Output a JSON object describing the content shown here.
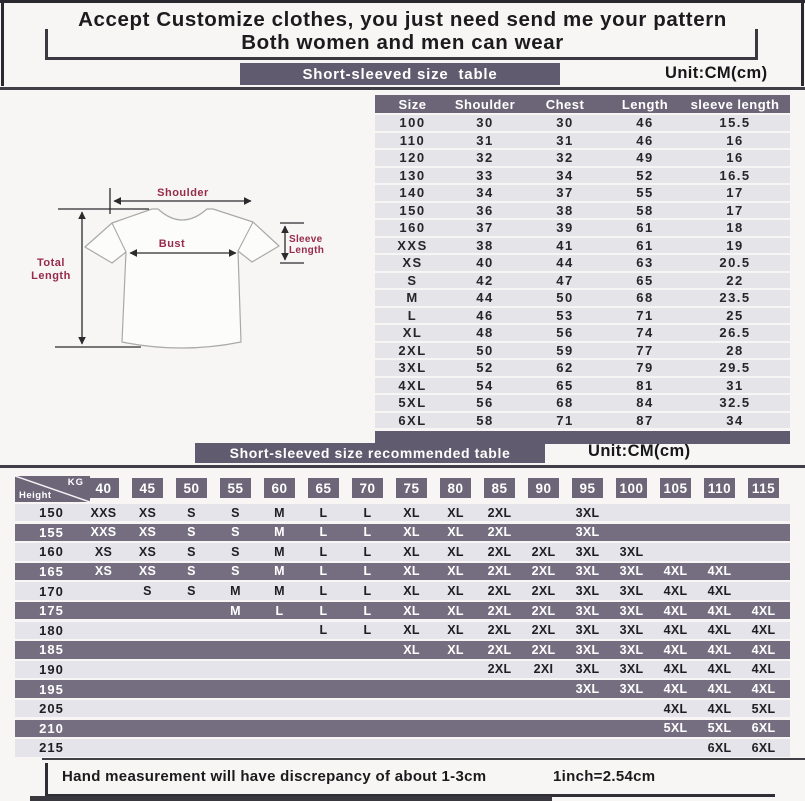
{
  "page": {
    "title_line1": "Accept Customize clothes, you just need send me your pattern",
    "title_line2": "Both women and men can wear"
  },
  "size_table_section": {
    "banner": "Short-sleeved size  table",
    "unit": "Unit:CM(cm)"
  },
  "size_table": {
    "columns": [
      "Size",
      "Shoulder",
      "Chest",
      "Length",
      "sleeve length"
    ],
    "rows": [
      [
        "100",
        "30",
        "30",
        "46",
        "15.5"
      ],
      [
        "110",
        "31",
        "31",
        "46",
        "16"
      ],
      [
        "120",
        "32",
        "32",
        "49",
        "16"
      ],
      [
        "130",
        "33",
        "34",
        "52",
        "16.5"
      ],
      [
        "140",
        "34",
        "37",
        "55",
        "17"
      ],
      [
        "150",
        "36",
        "38",
        "58",
        "17"
      ],
      [
        "160",
        "37",
        "39",
        "61",
        "18"
      ],
      [
        "XXS",
        "38",
        "41",
        "61",
        "19"
      ],
      [
        "XS",
        "40",
        "44",
        "63",
        "20.5"
      ],
      [
        "S",
        "42",
        "47",
        "65",
        "22"
      ],
      [
        "M",
        "44",
        "50",
        "68",
        "23.5"
      ],
      [
        "L",
        "46",
        "53",
        "71",
        "25"
      ],
      [
        "XL",
        "48",
        "56",
        "74",
        "26.5"
      ],
      [
        "2XL",
        "50",
        "59",
        "77",
        "28"
      ],
      [
        "3XL",
        "52",
        "62",
        "79",
        "29.5"
      ],
      [
        "4XL",
        "54",
        "65",
        "81",
        "31"
      ],
      [
        "5XL",
        "56",
        "68",
        "84",
        "32.5"
      ],
      [
        "6XL",
        "58",
        "71",
        "87",
        "34"
      ]
    ]
  },
  "diagram": {
    "shoulder_label": "Shoulder",
    "bust_label": "Bust",
    "total_length_line1": "Total",
    "total_length_line2": "Length",
    "sleeve_line1": "Sleeve",
    "sleeve_line2": "Length"
  },
  "reco_section": {
    "banner": "Short-sleeved size recommended table",
    "unit": "Unit:CM(cm)"
  },
  "reco_table": {
    "corner_top": "KG",
    "corner_bottom": "Height",
    "weights": [
      "40",
      "45",
      "50",
      "55",
      "60",
      "65",
      "70",
      "75",
      "80",
      "85",
      "90",
      "95",
      "100",
      "105",
      "110",
      "115"
    ],
    "rows": [
      {
        "height": "150",
        "cells": [
          "XXS",
          "XS",
          "S",
          "S",
          "M",
          "L",
          "L",
          "XL",
          "XL",
          "2XL",
          "",
          "3XL",
          "",
          "",
          "",
          ""
        ]
      },
      {
        "height": "155",
        "cells": [
          "XXS",
          "XS",
          "S",
          "S",
          "M",
          "L",
          "L",
          "XL",
          "XL",
          "2XL",
          "",
          "3XL",
          "",
          "",
          "",
          ""
        ]
      },
      {
        "height": "160",
        "cells": [
          "XS",
          "XS",
          "S",
          "S",
          "M",
          "L",
          "L",
          "XL",
          "XL",
          "2XL",
          "2XL",
          "3XL",
          "3XL",
          "",
          "",
          ""
        ]
      },
      {
        "height": "165",
        "cells": [
          "XS",
          "XS",
          "S",
          "S",
          "M",
          "L",
          "L",
          "XL",
          "XL",
          "2XL",
          "2XL",
          "3XL",
          "3XL",
          "4XL",
          "4XL",
          ""
        ]
      },
      {
        "height": "170",
        "cells": [
          "",
          "S",
          "S",
          "M",
          "M",
          "L",
          "L",
          "XL",
          "XL",
          "2XL",
          "2XL",
          "3XL",
          "3XL",
          "4XL",
          "4XL",
          ""
        ]
      },
      {
        "height": "175",
        "cells": [
          "",
          "",
          "",
          "M",
          "L",
          "L",
          "L",
          "XL",
          "XL",
          "2XL",
          "2XL",
          "3XL",
          "3XL",
          "4XL",
          "4XL",
          "4XL"
        ]
      },
      {
        "height": "180",
        "cells": [
          "",
          "",
          "",
          "",
          "",
          "L",
          "L",
          "XL",
          "XL",
          "2XL",
          "2XL",
          "3XL",
          "3XL",
          "4XL",
          "4XL",
          "4XL"
        ]
      },
      {
        "height": "185",
        "cells": [
          "",
          "",
          "",
          "",
          "",
          "",
          "",
          "XL",
          "XL",
          "2XL",
          "2XL",
          "3XL",
          "3XL",
          "4XL",
          "4XL",
          "4XL"
        ]
      },
      {
        "height": "190",
        "cells": [
          "",
          "",
          "",
          "",
          "",
          "",
          "",
          "",
          "",
          "2XL",
          "2XI",
          "3XL",
          "3XL",
          "4XL",
          "4XL",
          "4XL"
        ]
      },
      {
        "height": "195",
        "cells": [
          "",
          "",
          "",
          "",
          "",
          "",
          "",
          "",
          "",
          "",
          "",
          "3XL",
          "3XL",
          "4XL",
          "4XL",
          "4XL"
        ]
      },
      {
        "height": "205",
        "cells": [
          "",
          "",
          "",
          "",
          "",
          "",
          "",
          "",
          "",
          "",
          "",
          "",
          "",
          "4XL",
          "4XL",
          "5XL"
        ]
      },
      {
        "height": "210",
        "cells": [
          "",
          "",
          "",
          "",
          "",
          "",
          "",
          "",
          "",
          "",
          "",
          "",
          "",
          "5XL",
          "5XL",
          "6XL"
        ]
      },
      {
        "height": "215",
        "cells": [
          "",
          "",
          "",
          "",
          "",
          "",
          "",
          "",
          "",
          "",
          "",
          "",
          "",
          "",
          "6XL",
          "6XL"
        ]
      }
    ]
  },
  "footer": {
    "note": "Hand measurement will have discrepancy of about  1-3cm",
    "conversion": "1inch=2.54cm"
  },
  "colors": {
    "banner_purple": "#605b6e",
    "header_purple": "#6c6678",
    "row_purple": "#746e80",
    "row_light": "#e6e4eb",
    "label_red": "#972b4a",
    "text_dark": "#1c1c1f"
  }
}
